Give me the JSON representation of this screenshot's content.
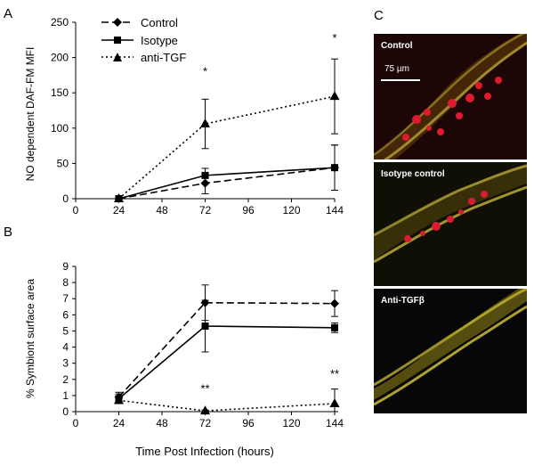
{
  "chart_data": [
    {
      "panel": "A",
      "type": "line",
      "ylabel": "NO dependent DAF-FM  MFI",
      "xlabel": "",
      "x_ticks": [
        "0",
        "24",
        "48",
        "72",
        "96",
        "120",
        "144"
      ],
      "y_ticks": [
        "0",
        "50",
        "100",
        "150",
        "200",
        "250"
      ],
      "xlim": [
        0,
        144
      ],
      "ylim": [
        0,
        250
      ],
      "legend": [
        "Control",
        "Isotype",
        "anti-TGF"
      ],
      "legend_position": "top-left",
      "series": [
        {
          "name": "Control",
          "marker": "diamond",
          "dash": "dashed",
          "x": [
            24,
            72,
            144
          ],
          "y": [
            0,
            22,
            44
          ],
          "err": [
            0,
            15,
            32
          ]
        },
        {
          "name": "Isotype",
          "marker": "square",
          "dash": "solid",
          "x": [
            24,
            72,
            144
          ],
          "y": [
            0,
            33,
            44
          ],
          "err": [
            0,
            10,
            32
          ]
        },
        {
          "name": "anti-TGF",
          "marker": "triangle",
          "dash": "dotted",
          "x": [
            24,
            72,
            144
          ],
          "y": [
            0,
            106,
            145
          ],
          "err": [
            0,
            35,
            53
          ]
        }
      ],
      "annotations": [
        {
          "x": 72,
          "y": 175,
          "text": "*"
        },
        {
          "x": 144,
          "y": 222,
          "text": "*"
        }
      ]
    },
    {
      "panel": "B",
      "type": "line",
      "ylabel": "% Symbiont surface area",
      "xlabel": "Time Post Infection (hours)",
      "x_ticks": [
        "0",
        "24",
        "48",
        "72",
        "96",
        "120",
        "144"
      ],
      "y_ticks": [
        "0",
        "1",
        "2",
        "3",
        "4",
        "5",
        "6",
        "7",
        "8",
        "9"
      ],
      "xlim": [
        0,
        144
      ],
      "ylim": [
        0,
        9
      ],
      "series": [
        {
          "name": "Control",
          "marker": "diamond",
          "dash": "dashed",
          "x": [
            24,
            72,
            144
          ],
          "y": [
            0.9,
            6.75,
            6.7
          ],
          "err": [
            0.3,
            1.1,
            0.8
          ]
        },
        {
          "name": "Isotype",
          "marker": "square",
          "dash": "solid",
          "x": [
            24,
            72,
            144
          ],
          "y": [
            0.8,
            5.3,
            5.2
          ],
          "err": [
            0.3,
            1.6,
            0.3
          ]
        },
        {
          "name": "anti-TGF",
          "marker": "triangle",
          "dash": "dotted",
          "x": [
            24,
            72,
            144
          ],
          "y": [
            0.7,
            0.05,
            0.5
          ],
          "err": [
            0.2,
            0.05,
            0.9
          ]
        }
      ],
      "annotations": [
        {
          "x": 72,
          "y": 1.2,
          "text": "**"
        },
        {
          "x": 144,
          "y": 2.1,
          "text": "**"
        }
      ]
    }
  ],
  "panel_labels": {
    "a": "A",
    "b": "B",
    "c": "C"
  },
  "micrographs": [
    {
      "label": "Control",
      "scale_bar": "75 µm",
      "colors": [
        "#2a0606",
        "#d81d33",
        "#d8c838"
      ]
    },
    {
      "label": "Isotype control",
      "colors": [
        "#1a1a06",
        "#d81d33",
        "#d8c838"
      ]
    },
    {
      "label": "Anti-TGFβ",
      "colors": [
        "#080805",
        "#d8c838"
      ]
    }
  ]
}
